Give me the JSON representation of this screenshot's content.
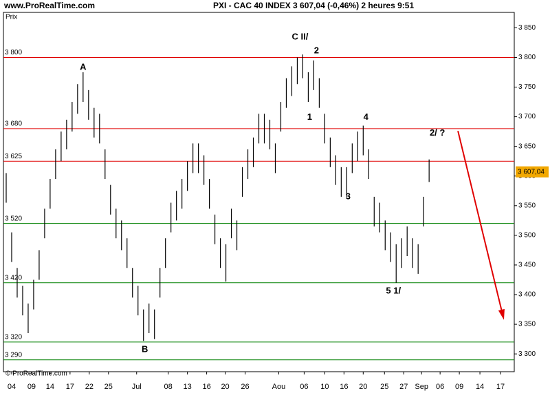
{
  "chart_data": {
    "type": "hilo",
    "site": "www.ProRealTime.com",
    "title": "PXI - CAC 40 INDEX    3 607,04 (-0,46%)    2 heures  9:51",
    "y_axis_label": "Prix",
    "copyright": "© ProRealTime.com",
    "color": "#000000",
    "x": [
      1,
      3,
      5,
      7,
      9,
      11,
      13,
      15,
      17,
      19,
      21,
      23,
      25,
      27,
      29,
      31,
      33,
      35,
      37,
      39,
      41,
      43,
      45,
      47,
      49,
      51,
      53,
      55,
      57,
      59,
      61,
      63,
      65,
      67,
      69,
      71,
      73,
      75,
      77,
      79,
      81,
      83,
      85,
      87,
      89,
      91,
      93,
      95,
      97,
      99,
      101,
      103,
      105,
      107,
      109,
      111,
      113,
      115,
      117,
      119,
      121,
      123,
      125,
      127,
      129,
      131,
      133,
      135,
      137,
      139,
      141,
      143,
      145,
      147,
      149,
      151,
      153,
      155
    ],
    "high": [
      3605,
      3505,
      3445,
      3415,
      3385,
      3425,
      3475,
      3545,
      3595,
      3645,
      3675,
      3695,
      3725,
      3755,
      3775,
      3745,
      3715,
      3705,
      3645,
      3585,
      3545,
      3525,
      3495,
      3445,
      3415,
      3375,
      3385,
      3375,
      3445,
      3495,
      3555,
      3575,
      3595,
      3625,
      3655,
      3655,
      3635,
      3595,
      3535,
      3495,
      3485,
      3545,
      3525,
      3615,
      3645,
      3665,
      3705,
      3705,
      3695,
      3655,
      3725,
      3765,
      3785,
      3800,
      3805,
      3775,
      3795,
      3765,
      3705,
      3665,
      3635,
      3615,
      3615,
      3655,
      3675,
      3685,
      3645,
      3565,
      3555,
      3525,
      3505,
      3485,
      3495,
      3515,
      3495,
      3485,
      3565,
      3628
    ],
    "low": [
      3555,
      3455,
      3395,
      3365,
      3335,
      3375,
      3425,
      3495,
      3545,
      3595,
      3625,
      3645,
      3675,
      3705,
      3725,
      3695,
      3665,
      3655,
      3595,
      3535,
      3495,
      3475,
      3445,
      3395,
      3365,
      3322,
      3335,
      3325,
      3395,
      3445,
      3505,
      3525,
      3545,
      3575,
      3605,
      3605,
      3585,
      3545,
      3485,
      3445,
      3422,
      3495,
      3475,
      3565,
      3595,
      3615,
      3655,
      3655,
      3645,
      3605,
      3675,
      3715,
      3735,
      3755,
      3765,
      3725,
      3745,
      3715,
      3655,
      3615,
      3585,
      3565,
      3565,
      3605,
      3625,
      3635,
      3595,
      3515,
      3505,
      3475,
      3455,
      3420,
      3445,
      3465,
      3445,
      3435,
      3515,
      3590
    ],
    "xlim": [
      0,
      186
    ],
    "xticks": [
      {
        "value": 3,
        "label": "04"
      },
      {
        "value": 10.25,
        "label": "09"
      },
      {
        "value": 17,
        "label": "14"
      },
      {
        "value": 24.25,
        "label": "17"
      },
      {
        "value": 31.25,
        "label": "22"
      },
      {
        "value": 38.25,
        "label": "25"
      },
      {
        "value": 48.5,
        "label": "Jul"
      },
      {
        "value": 60,
        "label": "08"
      },
      {
        "value": 67,
        "label": "13"
      },
      {
        "value": 74,
        "label": "16"
      },
      {
        "value": 80.75,
        "label": "20"
      },
      {
        "value": 88,
        "label": "26"
      },
      {
        "value": 100.25,
        "label": "Aou"
      },
      {
        "value": 109.5,
        "label": "06"
      },
      {
        "value": 117,
        "label": "10"
      },
      {
        "value": 124,
        "label": "16"
      },
      {
        "value": 131,
        "label": "20"
      },
      {
        "value": 138.75,
        "label": "25"
      },
      {
        "value": 145.75,
        "label": "27"
      },
      {
        "value": 152.25,
        "label": "Sep"
      },
      {
        "value": 159,
        "label": "06"
      },
      {
        "value": 166,
        "label": "09"
      },
      {
        "value": 173.5,
        "label": "14"
      },
      {
        "value": 181,
        "label": "17"
      }
    ],
    "ylim": [
      3270,
      3876
    ],
    "yticks": [
      {
        "value": 3300,
        "label": "3 300"
      },
      {
        "value": 3350,
        "label": "3 350"
      },
      {
        "value": 3400,
        "label": "3 400"
      },
      {
        "value": 3450,
        "label": "3 450"
      },
      {
        "value": 3500,
        "label": "3 500"
      },
      {
        "value": 3550,
        "label": "3 550"
      },
      {
        "value": 3600,
        "label": "3 600"
      },
      {
        "value": 3650,
        "label": "3 650"
      },
      {
        "value": 3700,
        "label": "3 700"
      },
      {
        "value": 3750,
        "label": "3 750"
      },
      {
        "value": 3800,
        "label": "3 800"
      },
      {
        "value": 3850,
        "label": "3 850"
      }
    ],
    "levels": [
      {
        "value": 3800,
        "label": "3 800",
        "color": "#e00000"
      },
      {
        "value": 3680,
        "label": "3 680",
        "color": "#e00000"
      },
      {
        "value": 3625,
        "label": "3 625",
        "color": "#e00000"
      },
      {
        "value": 3520,
        "label": "3 520",
        "color": "#008000"
      },
      {
        "value": 3420,
        "label": "3 420",
        "color": "#008000"
      },
      {
        "value": 3320,
        "label": "3 320",
        "color": "#008000"
      },
      {
        "value": 3290,
        "label": "3 290",
        "color": "#008000"
      }
    ],
    "last": {
      "value": 3607.04,
      "label": "3 607,04"
    },
    "annotations": [
      {
        "text": "A",
        "x": 29,
        "y": 3783
      },
      {
        "text": "B",
        "x": 51.5,
        "y": 3307
      },
      {
        "text": "C II/",
        "x": 108,
        "y": 3834
      },
      {
        "text": "2",
        "x": 114,
        "y": 3811
      },
      {
        "text": "1",
        "x": 111.5,
        "y": 3699
      },
      {
        "text": "4",
        "x": 132,
        "y": 3699
      },
      {
        "text": "3",
        "x": 125.5,
        "y": 3565
      },
      {
        "text": "5 1/",
        "x": 142,
        "y": 3406
      },
      {
        "text": "2/ ?",
        "x": 158,
        "y": 3672
      }
    ],
    "arrow": {
      "x": [
        165.5,
        182
      ],
      "y": [
        3676,
        3362
      ],
      "color": "#e00000"
    }
  }
}
